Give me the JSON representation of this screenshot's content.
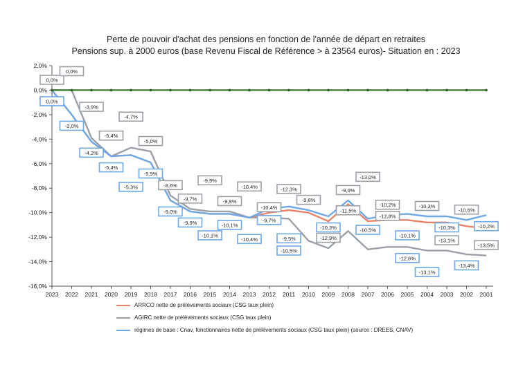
{
  "chart_data": {
    "type": "line",
    "title": "Perte de pouvoir d'achat  des pensions en fonction de l'année de départ en retraites",
    "subtitle": "Pensions sup. à 2000 euros (base Revenu Fiscal de Référence > à 23564 euros)- Situation en : 2023",
    "xlabel": "",
    "ylabel": "",
    "ylim": [
      -16,
      2
    ],
    "yticks": [
      "2,0%",
      "0,0%",
      "-2,0%",
      "-4,0%",
      "-6,0%",
      "-8,0%",
      "-10,0%",
      "-12,0%",
      "-14,0%",
      "-16,0%"
    ],
    "categories": [
      "2023",
      "2022",
      "2021",
      "2020",
      "2019",
      "2018",
      "2017",
      "2016",
      "2015",
      "2014",
      "2013",
      "2012",
      "2011",
      "2010",
      "2009",
      "2008",
      "2007",
      "2006",
      "2005",
      "2004",
      "2003",
      "2002",
      "2001"
    ],
    "grid": false,
    "legend_position": "bottom",
    "series": [
      {
        "name": "ARRCO nette de prélèvements sociaux (CSG taux plein)",
        "color": "#e8836a",
        "values": [
          0,
          -2.0,
          -4.2,
          -5.4,
          -5.3,
          -5.9,
          -9.0,
          -9.9,
          -10.1,
          -10.1,
          -10.4,
          -10.0,
          -9.8,
          -10.0,
          -10.7,
          -9.3,
          -10.7,
          -10.6,
          -10.6,
          -10.8,
          -10.8,
          -11.1,
          -11.3
        ]
      },
      {
        "name": "AGIRC nette de prélèvements sociaux (CSG taux plein)",
        "color": "#9aa0a8",
        "values": [
          0,
          0,
          -3.9,
          -5.4,
          -4.7,
          -5.0,
          -8.6,
          -9.7,
          -9.9,
          -9.9,
          -10.4,
          -10.4,
          -10.5,
          -12.3,
          -12.9,
          -11.5,
          -13.0,
          -12.8,
          -12.8,
          -13.1,
          -13.1,
          -13.4,
          -13.5
        ]
      },
      {
        "name": "régimes de base : Cnav, fonctionnaires nette  de prélèvements sociaux (CSG taux plein) (source :  DREES, CNAV)",
        "color": "#6ea8e6",
        "values": [
          0,
          -2.0,
          -4.2,
          -5.4,
          -5.3,
          -5.9,
          -9.0,
          -9.9,
          -10.1,
          -10.1,
          -10.4,
          -9.7,
          -9.5,
          -9.8,
          -10.3,
          -9.0,
          -10.5,
          -10.2,
          -10.1,
          -10.3,
          -10.3,
          -10.6,
          -10.2
        ]
      },
      {
        "name": "",
        "color": "#3f7a2a",
        "values": [
          0,
          0,
          0,
          0,
          0,
          0,
          0,
          0,
          0,
          0,
          0,
          0,
          0,
          0,
          0,
          0,
          0,
          0,
          0,
          0,
          0,
          0,
          0
        ]
      }
    ],
    "annotations": [
      {
        "x": "2023",
        "y": 0.0,
        "text": "0,0%",
        "style": "gray"
      },
      {
        "x": "2023",
        "y": 0.0,
        "text": "0,0%",
        "style": "blue"
      },
      {
        "x": "2022",
        "y": 0.0,
        "text": "0,0%",
        "style": "gray"
      },
      {
        "x": "2022",
        "y": -2.0,
        "text": "-2,0%",
        "style": "blue"
      },
      {
        "x": "2021",
        "y": -3.9,
        "text": "-3,9%",
        "style": "gray"
      },
      {
        "x": "2021",
        "y": -4.2,
        "text": "-4,2%",
        "style": "blue"
      },
      {
        "x": "2020",
        "y": -5.4,
        "text": "-5,4%",
        "style": "gray"
      },
      {
        "x": "2020",
        "y": -5.4,
        "text": "-5,4%",
        "style": "blue"
      },
      {
        "x": "2019",
        "y": -4.7,
        "text": "-4,7%",
        "style": "gray"
      },
      {
        "x": "2019",
        "y": -5.3,
        "text": "-5,3%",
        "style": "blue"
      },
      {
        "x": "2018",
        "y": -5.0,
        "text": "-5,0%",
        "style": "gray"
      },
      {
        "x": "2018",
        "y": -5.9,
        "text": "-5,9%",
        "style": "blue"
      },
      {
        "x": "2017",
        "y": -8.6,
        "text": "-8,6%",
        "style": "gray"
      },
      {
        "x": "2017",
        "y": -9.0,
        "text": "-9,0%",
        "style": "blue"
      },
      {
        "x": "2016",
        "y": -9.7,
        "text": "-9,7%",
        "style": "gray"
      },
      {
        "x": "2016",
        "y": -9.9,
        "text": "-9,9%",
        "style": "blue"
      },
      {
        "x": "2015",
        "y": -9.9,
        "text": "-9,9%",
        "style": "gray"
      },
      {
        "x": "2015",
        "y": -10.1,
        "text": "-10,1%",
        "style": "blue"
      },
      {
        "x": "2014",
        "y": -9.9,
        "text": "-9,9%",
        "style": "gray"
      },
      {
        "x": "2014",
        "y": -10.1,
        "text": "-10,1%",
        "style": "blue"
      },
      {
        "x": "2013",
        "y": -10.4,
        "text": "-10,4%",
        "style": "gray"
      },
      {
        "x": "2013",
        "y": -10.4,
        "text": "-10,4%",
        "style": "blue"
      },
      {
        "x": "2012",
        "y": -9.7,
        "text": "-9,7%",
        "style": "blue"
      },
      {
        "x": "2012",
        "y": -10.4,
        "text": "-10,4%",
        "style": "gray"
      },
      {
        "x": "2011",
        "y": -9.5,
        "text": "-9,5%",
        "style": "blue"
      },
      {
        "x": "2011",
        "y": -10.5,
        "text": "-10,5%",
        "style": "blue"
      },
      {
        "x": "2011",
        "y": -12.3,
        "text": "-12,3%",
        "style": "gray"
      },
      {
        "x": "2010",
        "y": -9.8,
        "text": "-9,8%",
        "style": "gray"
      },
      {
        "x": "2009",
        "y": -10.3,
        "text": "-10,3%",
        "style": "blue"
      },
      {
        "x": "2009",
        "y": -12.9,
        "text": "-12,9%",
        "style": "gray"
      },
      {
        "x": "2008",
        "y": -9.0,
        "text": "-9,0%",
        "style": "gray"
      },
      {
        "x": "2008",
        "y": -11.5,
        "text": "-11,5%",
        "style": "gray"
      },
      {
        "x": "2007",
        "y": -10.5,
        "text": "-10,5%",
        "style": "blue"
      },
      {
        "x": "2007",
        "y": -13.0,
        "text": "-13,0%",
        "style": "gray"
      },
      {
        "x": "2006",
        "y": -10.2,
        "text": "-10,2%",
        "style": "gray"
      },
      {
        "x": "2006",
        "y": -12.8,
        "text": "-12,8%",
        "style": "gray"
      },
      {
        "x": "2005",
        "y": -10.1,
        "text": "-10,1%",
        "style": "blue"
      },
      {
        "x": "2005",
        "y": -12.8,
        "text": "-12,8%",
        "style": "blue"
      },
      {
        "x": "2004",
        "y": -10.3,
        "text": "-10,3%",
        "style": "gray"
      },
      {
        "x": "2004",
        "y": -13.1,
        "text": "-13,1%",
        "style": "blue"
      },
      {
        "x": "2003",
        "y": -10.3,
        "text": "-10,3%",
        "style": "blue"
      },
      {
        "x": "2003",
        "y": -13.1,
        "text": "-13,1%",
        "style": "gray"
      },
      {
        "x": "2002",
        "y": -10.6,
        "text": "-10,6%",
        "style": "gray"
      },
      {
        "x": "2002",
        "y": -13.4,
        "text": "-13,4%",
        "style": "blue"
      },
      {
        "x": "2001",
        "y": -10.2,
        "text": "-10,2%",
        "style": "blue"
      },
      {
        "x": "2001",
        "y": -13.5,
        "text": "-13,5%",
        "style": "gray"
      }
    ]
  }
}
